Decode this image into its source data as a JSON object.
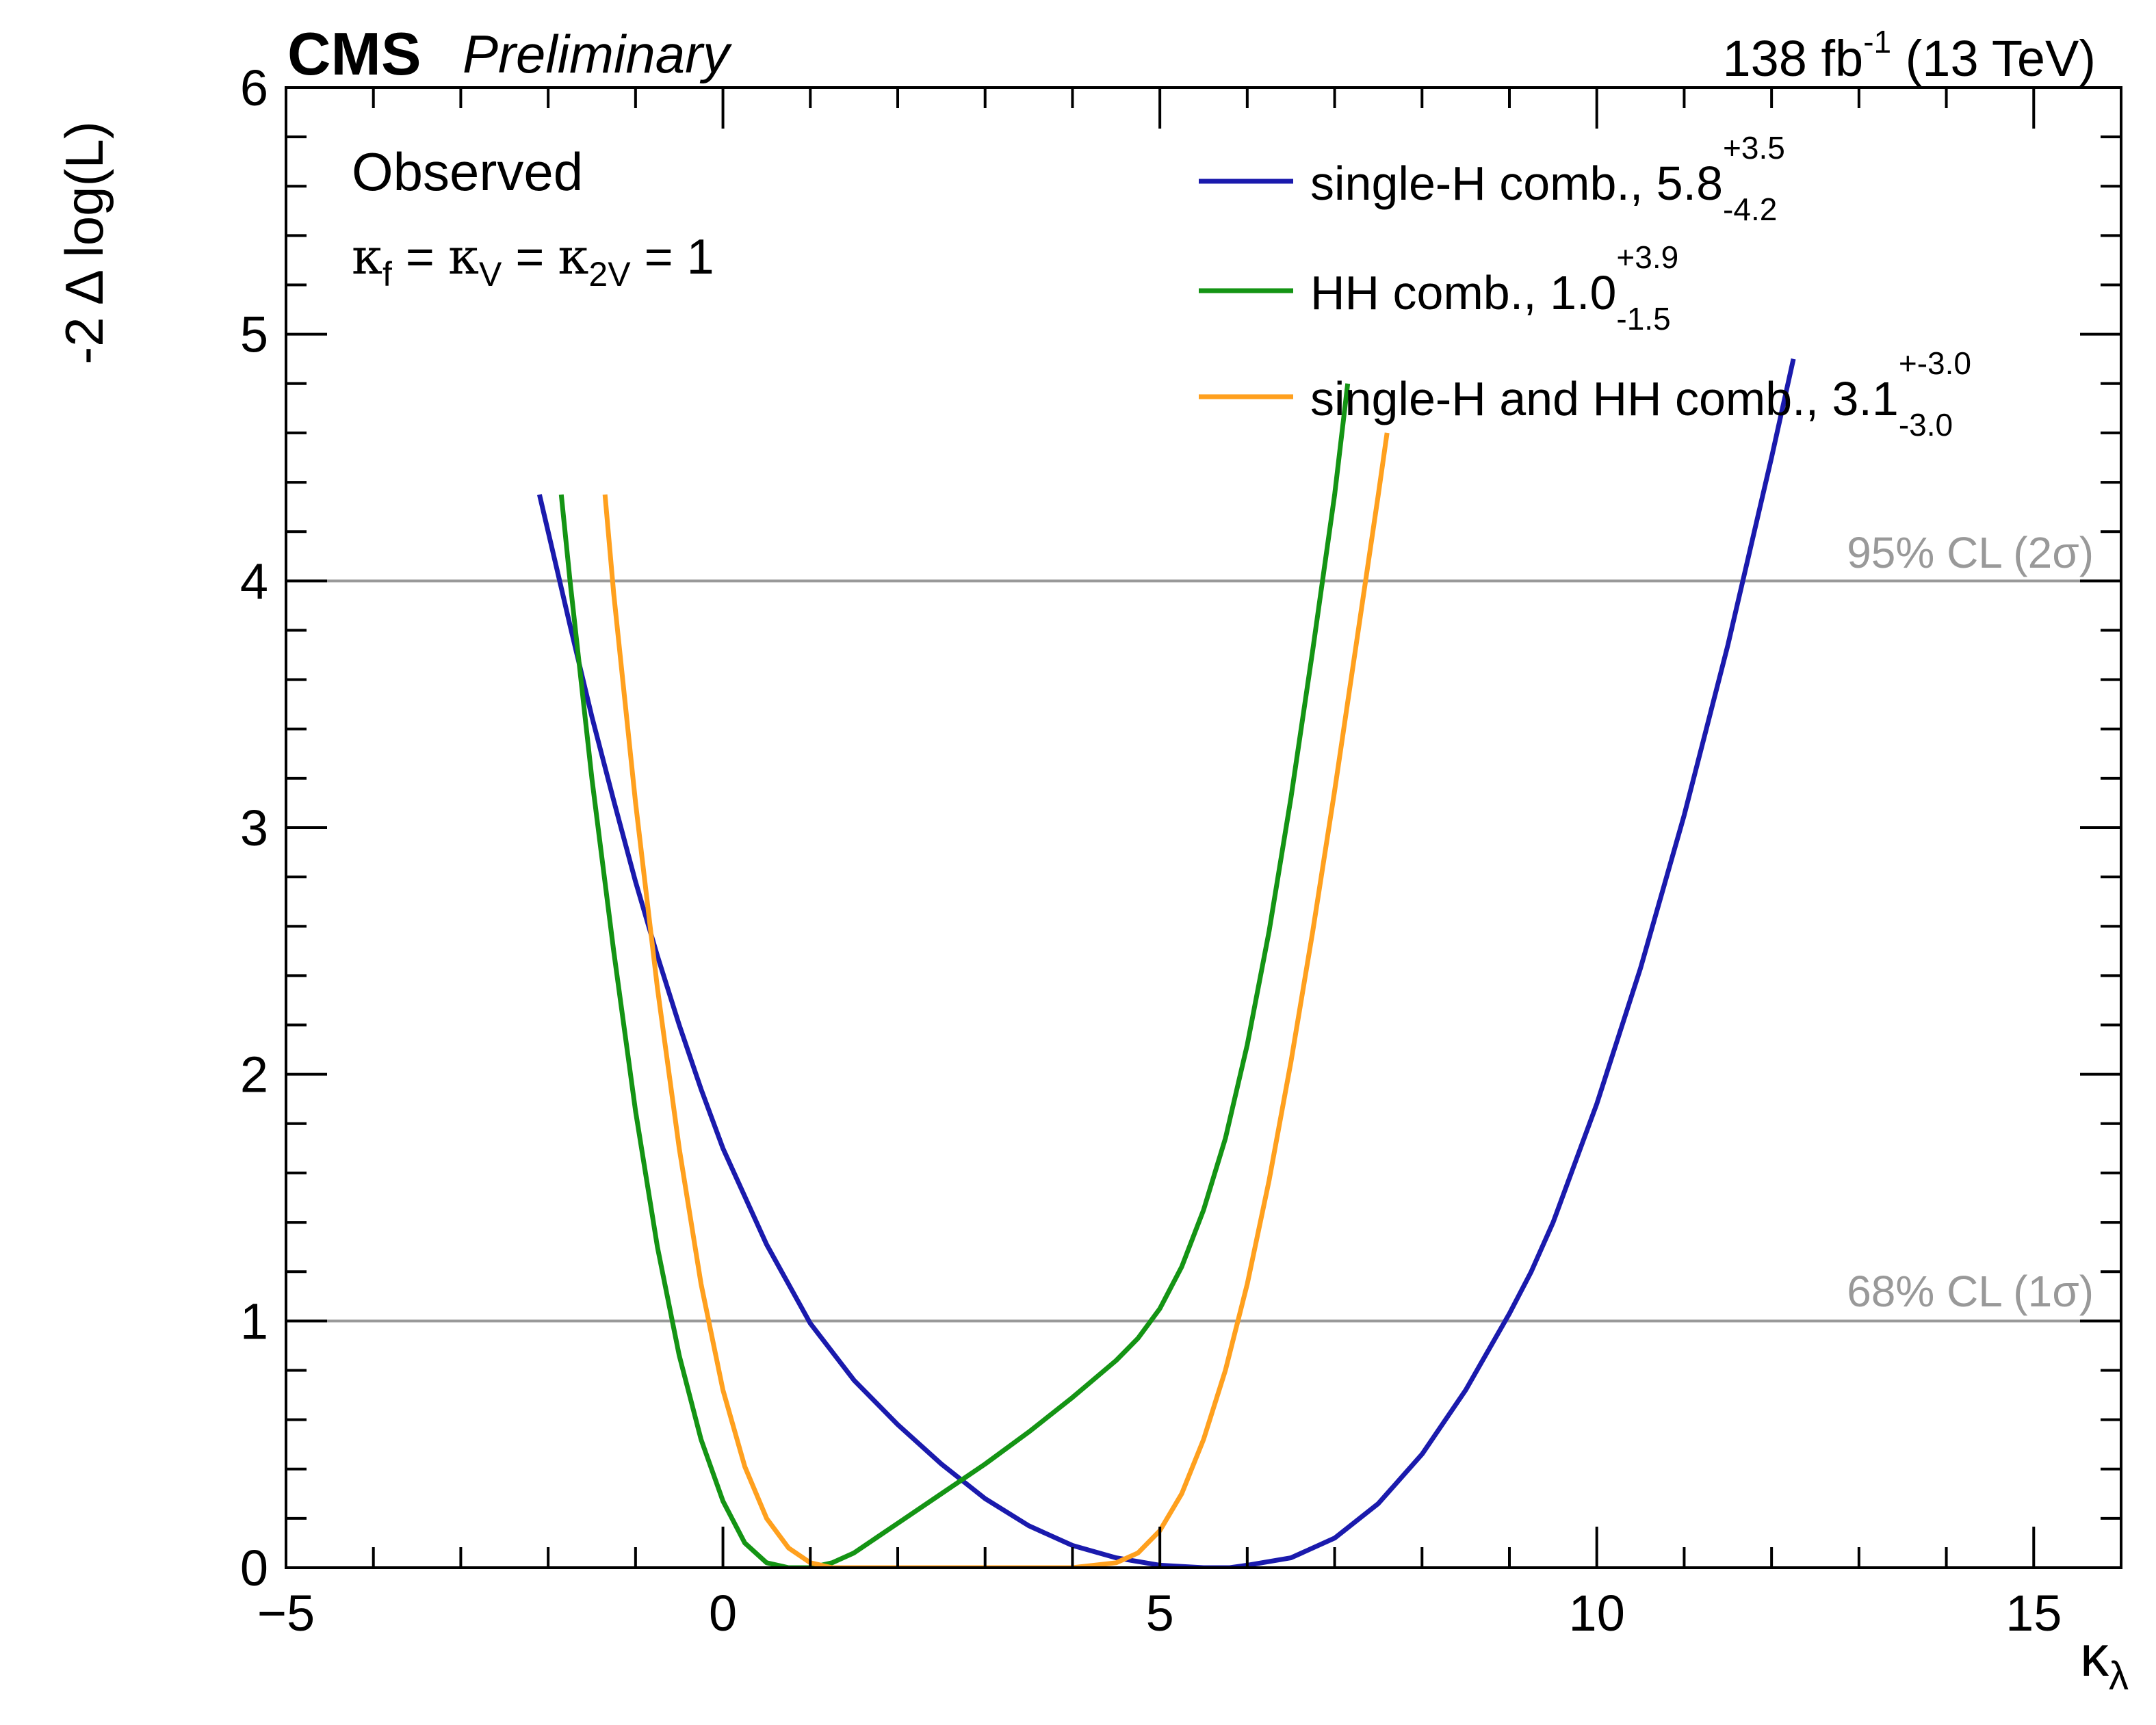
{
  "header": {
    "experiment": "CMS",
    "status": "Preliminary",
    "lumi_value": "138 fb",
    "lumi_exp": "-1",
    "energy": " (13 TeV)"
  },
  "annotations": {
    "observed": "Observed",
    "coupling_kappa": "κ",
    "coupling_f": "f",
    "coupling_eq": " = ",
    "coupling_V": "V",
    "coupling_2V": "2V",
    "coupling_one": " = 1",
    "cl95": "95% CL (2σ)",
    "cl68": "68% CL (1σ)"
  },
  "colors": {
    "single_h": "#1a1aad",
    "hh": "#149414",
    "combined": "#ffa01e",
    "cl_lines": "#999999"
  },
  "chart_data": {
    "type": "line",
    "title": "",
    "xlabel": "κλ",
    "xlabel_main": "κ",
    "xlabel_sub": "λ",
    "ylabel": "-2 Δ log(L)",
    "xlim": [
      -5,
      16
    ],
    "ylim": [
      0,
      6
    ],
    "x_ticks": [
      -5,
      0,
      5,
      10,
      15
    ],
    "x_tick_labels": [
      "−5",
      "0",
      "5",
      "10",
      "15"
    ],
    "y_ticks": [
      0,
      1,
      2,
      3,
      4,
      5,
      6
    ],
    "y_tick_labels": [
      "0",
      "1",
      "2",
      "3",
      "4",
      "5",
      "6"
    ],
    "reference_lines": [
      {
        "y": 4,
        "label": "95% CL (2σ)"
      },
      {
        "y": 1,
        "label": "68% CL (1σ)"
      }
    ],
    "legend_position": "top-right",
    "series": [
      {
        "name": "single-H comb., 5.8",
        "label_main": "single-H comb., 5.8",
        "label_sup": "+3.5",
        "label_sub": "-4.2",
        "color": "#1a1aad",
        "x": [
          -2.1,
          -2.0,
          -1.75,
          -1.5,
          -1.25,
          -1.0,
          -0.75,
          -0.5,
          -0.25,
          0.0,
          0.5,
          1.0,
          1.5,
          2.0,
          2.5,
          3.0,
          3.5,
          4.0,
          4.5,
          5.0,
          5.5,
          5.8,
          6.0,
          6.5,
          7.0,
          7.5,
          8.0,
          8.5,
          9.0,
          9.25,
          9.5,
          10.0,
          10.5,
          11.0,
          11.5,
          12.0,
          12.25
        ],
        "y": [
          4.35,
          4.2,
          3.82,
          3.45,
          3.11,
          2.78,
          2.48,
          2.2,
          1.94,
          1.7,
          1.31,
          0.99,
          0.76,
          0.58,
          0.42,
          0.28,
          0.17,
          0.09,
          0.04,
          0.01,
          0.0,
          0.0,
          0.01,
          0.04,
          0.12,
          0.26,
          0.46,
          0.72,
          1.03,
          1.2,
          1.4,
          1.88,
          2.43,
          3.05,
          3.74,
          4.5,
          4.9
        ]
      },
      {
        "name": "HH comb., 1.0",
        "label_main": "HH comb., 1.0",
        "label_sup": "+3.9",
        "label_sub": "-1.5",
        "color": "#149414",
        "x": [
          -1.85,
          -1.75,
          -1.5,
          -1.25,
          -1.0,
          -0.75,
          -0.5,
          -0.25,
          0.0,
          0.25,
          0.5,
          0.75,
          1.0,
          1.25,
          1.5,
          1.75,
          2.0,
          2.5,
          3.0,
          3.5,
          4.0,
          4.5,
          4.75,
          5.0,
          5.25,
          5.5,
          5.75,
          6.0,
          6.25,
          6.5,
          6.75,
          7.0,
          7.15
        ],
        "y": [
          4.35,
          4.0,
          3.2,
          2.5,
          1.85,
          1.3,
          0.86,
          0.52,
          0.27,
          0.1,
          0.02,
          0.0,
          0.0,
          0.02,
          0.06,
          0.12,
          0.18,
          0.3,
          0.42,
          0.55,
          0.69,
          0.84,
          0.93,
          1.05,
          1.22,
          1.45,
          1.74,
          2.12,
          2.58,
          3.12,
          3.72,
          4.35,
          4.8
        ]
      },
      {
        "name": "single-H and HH comb., 3.1",
        "label_main": "single-H and HH comb., 3.1",
        "label_sup": "+-3.0",
        "label_sub": "-3.0",
        "color": "#ffa01e",
        "x": [
          -1.35,
          -1.25,
          -1.0,
          -0.75,
          -0.5,
          -0.25,
          0.0,
          0.25,
          0.5,
          0.75,
          1.0,
          1.25,
          1.5,
          1.75,
          2.0,
          2.5,
          3.0,
          3.5,
          4.0,
          4.5,
          4.75,
          5.0,
          5.25,
          5.5,
          5.75,
          6.0,
          6.25,
          6.5,
          6.75,
          7.0,
          7.25,
          7.5,
          7.6
        ],
        "y": [
          4.35,
          3.95,
          3.1,
          2.35,
          1.7,
          1.15,
          0.72,
          0.41,
          0.2,
          0.08,
          0.02,
          0.0,
          0.0,
          0.0,
          0.0,
          0.0,
          0.0,
          0.0,
          0.0,
          0.02,
          0.06,
          0.15,
          0.3,
          0.52,
          0.8,
          1.15,
          1.57,
          2.05,
          2.58,
          3.15,
          3.75,
          4.35,
          4.6
        ]
      }
    ]
  }
}
